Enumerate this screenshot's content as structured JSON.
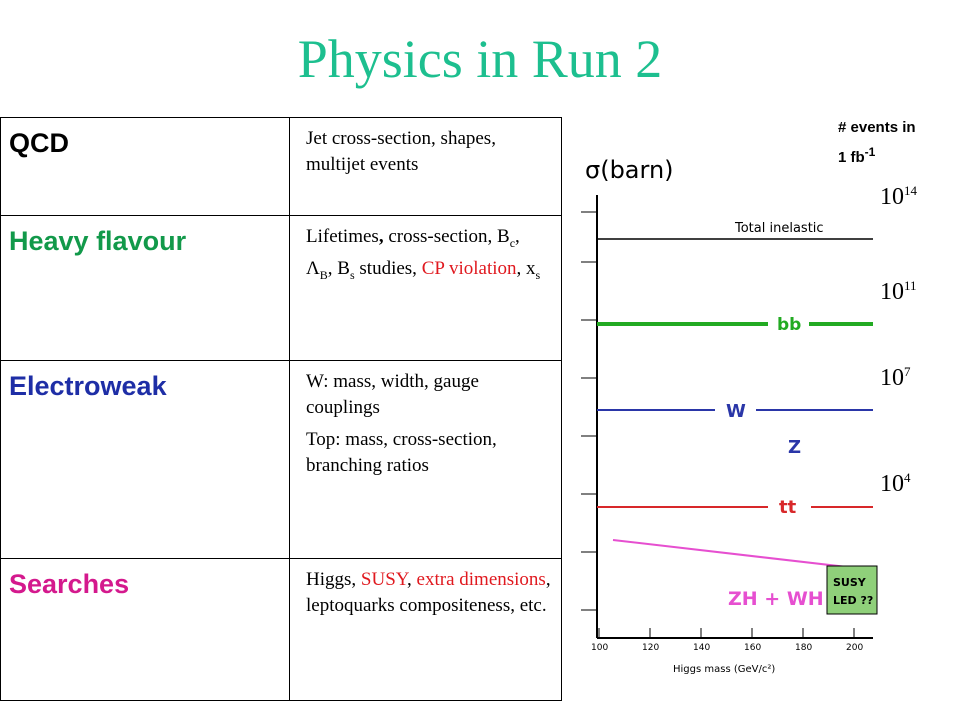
{
  "slide": {
    "title": "Physics in Run 2"
  },
  "table": {
    "rows": [
      {
        "category": "QCD",
        "color": "#000000",
        "lines": [
          [
            "Jet cross-section, shapes, multijet events"
          ]
        ]
      },
      {
        "category": "Heavy flavour",
        "color": "#12994a",
        "lines": [
          [
            "Lifetimes",
            ", ",
            "cross-section, B",
            "c",
            ", Λ",
            "B",
            ", B",
            "s",
            " studies, ",
            "CP violation",
            ", x",
            "s"
          ]
        ]
      },
      {
        "category": "Electroweak",
        "color": "#1e2ea6",
        "lines": [
          [
            "W: mass, width, gauge couplings"
          ],
          [
            "Top: mass, cross-section, branching ratios"
          ]
        ]
      },
      {
        "category": "Searches",
        "color": "#d4198d",
        "lines": [
          [
            "Higgs, ",
            "SUSY",
            ", ",
            "extra dimensions",
            ", leptoquarks compositeness, etc."
          ]
        ]
      }
    ]
  },
  "plot": {
    "y_label": "σ(barn)",
    "x_label": "Higgs mass (GeV/c²)",
    "curves": {
      "total_inelastic": "Total inelastic",
      "bb": "bb",
      "w": "W",
      "z": "Z",
      "tt": "tt",
      "zh_wh": "ZH + WH"
    },
    "x_ticks": [
      "100",
      "120",
      "140",
      "160",
      "180",
      "200"
    ],
    "susy_box": [
      "SUSY",
      "LED ??"
    ],
    "colors": {
      "bb": "#22aa22",
      "w": "#2a36a8",
      "tt": "#d8282a",
      "zh": "#e64fd0",
      "susy_box": "#8fd07a"
    }
  },
  "events": {
    "header_line1": "# events in",
    "header_line2_base": "1 fb",
    "header_line2_exp": "-1",
    "values": [
      {
        "base": "10",
        "exp": "14"
      },
      {
        "base": "10",
        "exp": "11"
      },
      {
        "base": "10",
        "exp": "7"
      },
      {
        "base": "10",
        "exp": "4"
      }
    ]
  }
}
